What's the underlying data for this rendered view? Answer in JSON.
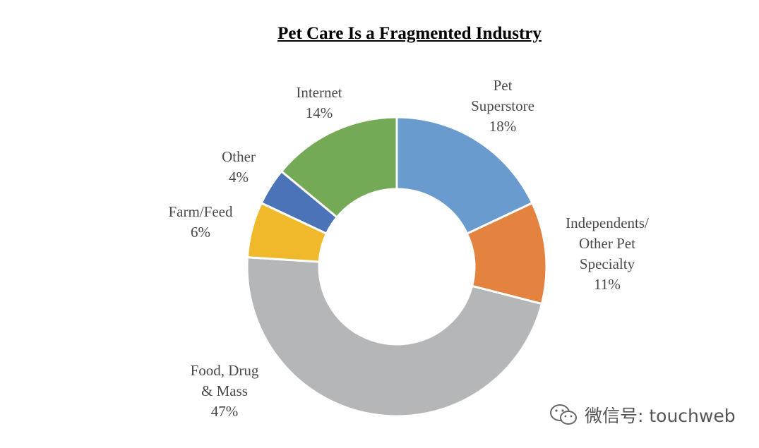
{
  "chart_data": {
    "type": "pie",
    "title": "Pet Care Is a Fragmented Industry",
    "donut": true,
    "slices": [
      {
        "label": "Pet Superstore",
        "lines": [
          "Pet",
          "Superstore",
          "18%"
        ],
        "value": 18,
        "color": "#6a9bcf"
      },
      {
        "label": "Independents/ Other Pet Specialty",
        "lines": [
          "Independents/",
          "Other Pet",
          "Specialty",
          "11%"
        ],
        "value": 11,
        "color": "#e4823f"
      },
      {
        "label": "Food, Drug & Mass",
        "lines": [
          "Food, Drug",
          "& Mass",
          "47%"
        ],
        "value": 47,
        "color": "#b5b6b8"
      },
      {
        "label": "Farm/Feed",
        "lines": [
          "Farm/Feed",
          "6%"
        ],
        "value": 6,
        "color": "#f0b92b"
      },
      {
        "label": "Other",
        "lines": [
          "Other",
          "4%"
        ],
        "value": 4,
        "color": "#4b74b8"
      },
      {
        "label": "Internet",
        "lines": [
          "Internet",
          "14%"
        ],
        "value": 14,
        "color": "#74a955"
      }
    ]
  },
  "watermark": {
    "text": "微信号: touchweb",
    "icon": "wechat-icon"
  }
}
